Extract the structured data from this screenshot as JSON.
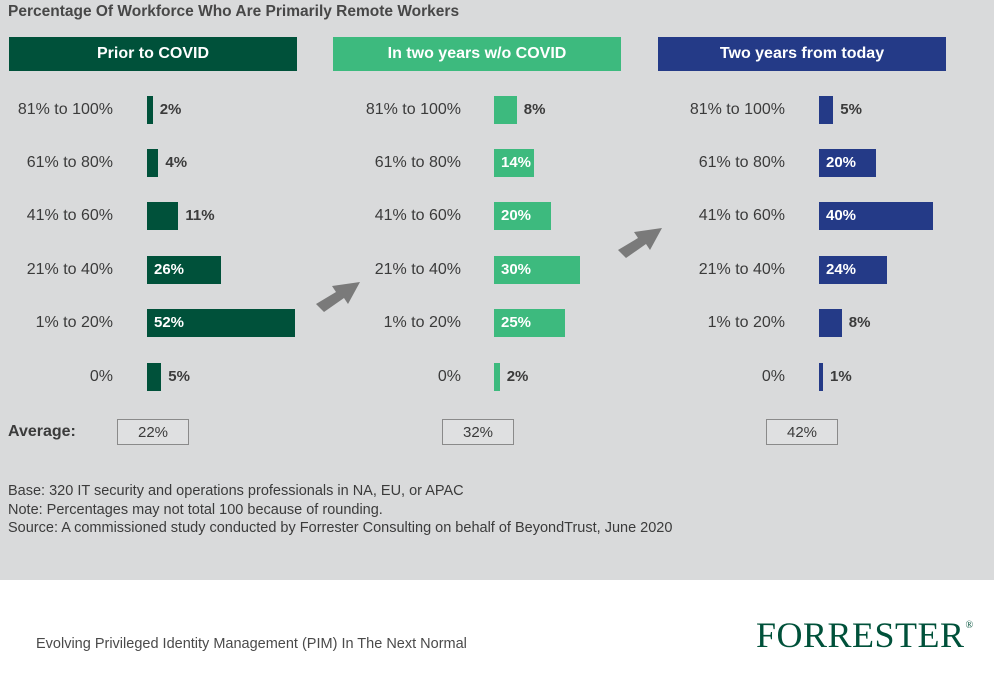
{
  "chart_data": {
    "type": "bar",
    "orientation": "horizontal",
    "title": "Percentage Of Workforce Who Are Primarily Remote Workers",
    "categories": [
      "81% to 100%",
      "61% to 80%",
      "41% to 60%",
      "21% to 40%",
      "1% to 20%",
      "0%"
    ],
    "average_label": "Average:",
    "series": [
      {
        "name": "Prior to COVID",
        "color": "#00513a",
        "values": [
          2,
          4,
          11,
          26,
          52,
          5
        ],
        "labels": [
          "2%",
          "4%",
          "11%",
          "26%",
          "52%",
          "5%"
        ],
        "average": "22%"
      },
      {
        "name": "In two years w/o COVID",
        "color": "#3dba7e",
        "values": [
          8,
          14,
          20,
          30,
          25,
          2
        ],
        "labels": [
          "8%",
          "14%",
          "20%",
          "30%",
          "25%",
          "2%"
        ],
        "average": "32%"
      },
      {
        "name": "Two years from today",
        "color": "#243a87",
        "values": [
          5,
          20,
          40,
          24,
          8,
          1
        ],
        "labels": [
          "5%",
          "20%",
          "40%",
          "24%",
          "8%",
          "1%"
        ],
        "average": "42%"
      }
    ],
    "notes": [
      "Base: 320 IT security and operations professionals in NA, EU, or APAC",
      "Note: Percentages may not total 100 because of rounding.",
      "Source: A commissioned study conducted by Forrester Consulting on behalf of BeyondTrust, June 2020"
    ]
  },
  "footer": {
    "report_title": "Evolving Privileged Identity Management (PIM) In The Next Normal",
    "brand": "FORRESTER",
    "trademark": "®"
  },
  "colors": {
    "panel": "#d9dadb",
    "arrow": "#7a7a7a",
    "brand": "#00513a"
  }
}
